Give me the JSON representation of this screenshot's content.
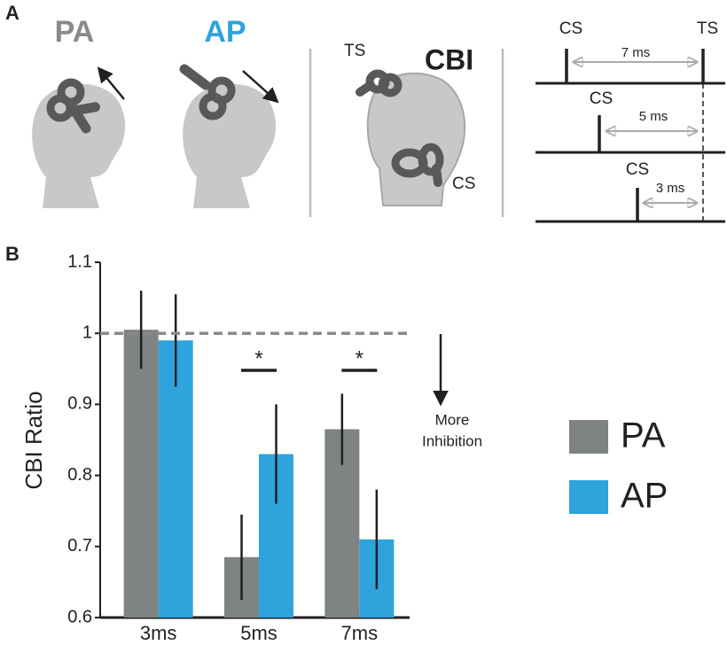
{
  "panel_labels": [
    "A",
    "B"
  ],
  "panel_a": {
    "coil_labels": [
      "PA",
      "AP"
    ],
    "cbi_title": "CBI",
    "ts_label": "TS",
    "cs_label": "CS",
    "timing": [
      {
        "cs": "CS",
        "ts": "TS",
        "interval": "7 ms"
      },
      {
        "cs": "CS",
        "interval": "5 ms"
      },
      {
        "cs": "CS",
        "interval": "3 ms"
      }
    ]
  },
  "chart_data": {
    "type": "bar",
    "ylabel": "CBI Ratio",
    "categories": [
      "3ms",
      "5ms",
      "7ms"
    ],
    "series": [
      {
        "name": "PA",
        "color": "#808384",
        "values": [
          1.005,
          0.685,
          0.865
        ],
        "errors": [
          0.055,
          0.06,
          0.05
        ]
      },
      {
        "name": "AP",
        "color": "#2ea3dc",
        "values": [
          0.99,
          0.83,
          0.71
        ],
        "errors": [
          0.065,
          0.07,
          0.07
        ]
      }
    ],
    "ylim": [
      0.6,
      1.1
    ],
    "yticks": [
      0.6,
      0.7,
      0.8,
      0.9,
      1,
      1.1
    ],
    "reference_line": 1,
    "significance_labels": [
      "*",
      "*"
    ],
    "annotation": [
      "More",
      "Inhibition"
    ],
    "grid": false
  }
}
